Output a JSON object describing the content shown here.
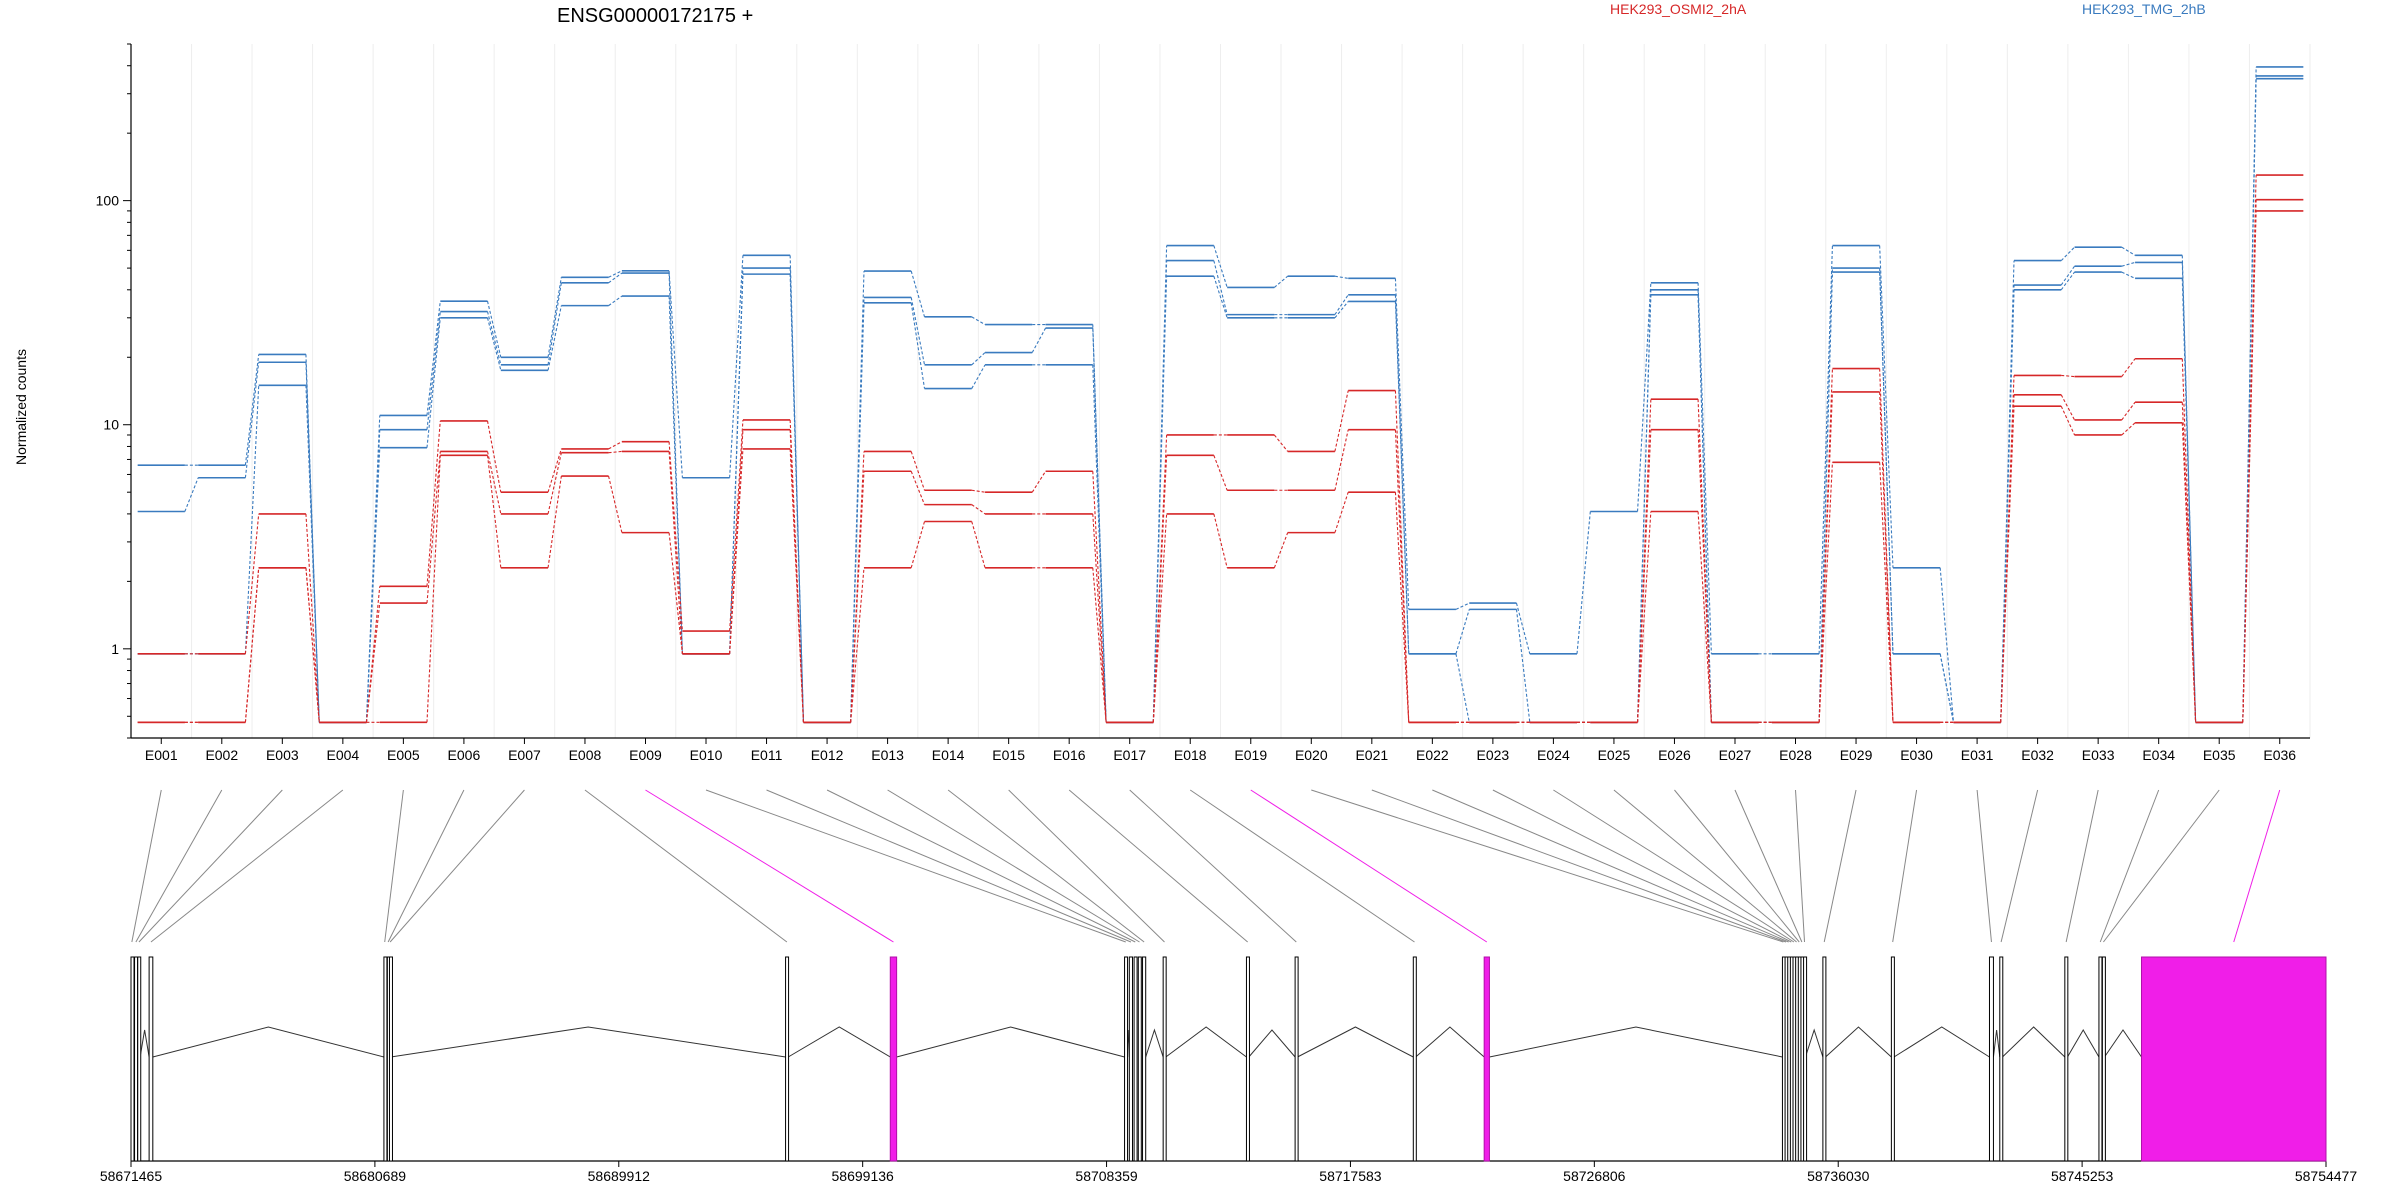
{
  "chart_data": {
    "type": "line",
    "title": "ENSG00000172175 +",
    "ylabel": "Normalized counts",
    "yscale": "log",
    "ylim": [
      0.4,
      500
    ],
    "y_tick_labels": [
      "1",
      "10",
      "100"
    ],
    "categories": [
      "E001",
      "E002",
      "E003",
      "E004",
      "E005",
      "E006",
      "E007",
      "E008",
      "E009",
      "E010",
      "E011",
      "E012",
      "E013",
      "E014",
      "E015",
      "E016",
      "E017",
      "E018",
      "E019",
      "E020",
      "E021",
      "E022",
      "E023",
      "E024",
      "E025",
      "E026",
      "E027",
      "E028",
      "E029",
      "E030",
      "E031",
      "E032",
      "E033",
      "E034",
      "E035",
      "E036"
    ],
    "legend": [
      {
        "name": "HEK293_OSMI2_2hA",
        "color": "#d62728"
      },
      {
        "name": "HEK293_TMG_2hB",
        "color": "#3a7bbf"
      }
    ],
    "series": [
      {
        "name": "HEK293_TMG_2hB",
        "color": "#3a7bbf",
        "values": [
          6.6,
          6.6,
          20.6,
          0.47,
          11.0,
          35.6,
          20.0,
          45.5,
          48.6,
          5.8,
          57.0,
          0.47,
          48.5,
          30.3,
          28.0,
          28.0,
          0.47,
          63.0,
          41.0,
          46.0,
          45.0,
          1.5,
          1.6,
          0.95,
          4.1,
          43.0,
          0.95,
          0.95,
          63.0,
          2.3,
          0.47,
          54.0,
          62.0,
          57.0,
          0.47,
          395
        ]
      },
      {
        "name": "HEK293_TMG_2hB",
        "color": "#3a7bbf",
        "values": [
          4.1,
          5.8,
          19.0,
          0.47,
          9.5,
          32.0,
          18.5,
          43.0,
          47.5,
          0.95,
          50.0,
          0.47,
          37.0,
          18.5,
          21.0,
          27.0,
          0.47,
          54.0,
          31.0,
          31.0,
          38.0,
          0.95,
          1.5,
          0.47,
          0.47,
          40.0,
          0.47,
          0.47,
          50.0,
          0.95,
          0.47,
          42.0,
          51.0,
          53.0,
          0.47,
          360
        ]
      },
      {
        "name": "HEK293_TMG_2hB",
        "color": "#3a7bbf",
        "values": [
          0.95,
          0.95,
          15.0,
          0.47,
          7.9,
          30.0,
          17.5,
          34.0,
          37.5,
          0.95,
          47.0,
          0.47,
          35.0,
          14.5,
          18.5,
          18.5,
          0.47,
          46.0,
          30.0,
          30.0,
          35.5,
          0.95,
          0.47,
          0.47,
          0.47,
          38.0,
          0.47,
          0.47,
          48.0,
          0.95,
          0.47,
          40.0,
          48.0,
          45.0,
          0.47,
          350
        ]
      },
      {
        "name": "HEK293_OSMI2_2hA",
        "color": "#d62728",
        "values": [
          0.95,
          0.95,
          4.0,
          0.47,
          1.9,
          10.4,
          5.0,
          7.8,
          8.4,
          1.2,
          10.5,
          0.47,
          7.6,
          5.1,
          5.0,
          6.2,
          0.47,
          9.0,
          9.0,
          7.6,
          14.2,
          0.47,
          0.47,
          0.47,
          0.47,
          13.0,
          0.47,
          0.47,
          17.8,
          0.47,
          0.47,
          16.6,
          16.4,
          19.7,
          0.47,
          130
        ]
      },
      {
        "name": "HEK293_OSMI2_2hA",
        "color": "#d62728",
        "values": [
          0.47,
          0.47,
          2.3,
          0.47,
          1.6,
          7.6,
          4.0,
          7.5,
          7.6,
          0.95,
          9.5,
          0.47,
          6.2,
          4.4,
          4.0,
          4.0,
          0.47,
          7.3,
          5.1,
          5.1,
          9.5,
          0.47,
          0.47,
          0.47,
          0.47,
          9.5,
          0.47,
          0.47,
          14.0,
          0.47,
          0.47,
          13.6,
          10.5,
          12.6,
          0.47,
          101
        ]
      },
      {
        "name": "HEK293_OSMI2_2hA",
        "color": "#d62728",
        "values": [
          0.47,
          0.47,
          2.3,
          0.47,
          0.47,
          7.3,
          2.3,
          5.9,
          3.3,
          0.95,
          7.8,
          0.47,
          2.3,
          3.7,
          2.3,
          2.3,
          0.47,
          4.0,
          2.3,
          3.3,
          5.0,
          0.47,
          0.47,
          0.47,
          0.47,
          4.1,
          0.47,
          0.47,
          6.8,
          0.47,
          0.47,
          12.1,
          9.0,
          10.2,
          0.47,
          90
        ]
      }
    ],
    "genomic_axis": {
      "tick_labels": [
        "58671465",
        "58680689",
        "58689912",
        "58699136",
        "58708359",
        "58717583",
        "58726806",
        "58736030",
        "58745253",
        "58754477"
      ],
      "range": [
        58671465,
        58754477
      ],
      "highlight_color": "#f01ee8",
      "exons": [
        {
          "id": "E001",
          "start": 58671465,
          "end": 58671530,
          "highlight": false
        },
        {
          "id": "E002",
          "start": 58671600,
          "end": 58671700,
          "highlight": false
        },
        {
          "id": "E003",
          "start": 58671720,
          "end": 58671810,
          "highlight": false
        },
        {
          "id": "E004",
          "start": 58672150,
          "end": 58672290,
          "highlight": false
        },
        {
          "id": "E005",
          "start": 58681030,
          "end": 58681090,
          "highlight": false
        },
        {
          "id": "E006",
          "start": 58681160,
          "end": 58681220,
          "highlight": false
        },
        {
          "id": "E007",
          "start": 58681240,
          "end": 58681290,
          "highlight": false
        },
        {
          "id": "E008",
          "start": 58696220,
          "end": 58696320,
          "highlight": false
        },
        {
          "id": "E009",
          "start": 58700180,
          "end": 58700420,
          "highlight": true
        },
        {
          "id": "E010",
          "start": 58709040,
          "end": 58709130,
          "highlight": false
        },
        {
          "id": "E011",
          "start": 58709220,
          "end": 58709340,
          "highlight": false
        },
        {
          "id": "E012",
          "start": 58709400,
          "end": 58709490,
          "highlight": false
        },
        {
          "id": "E013",
          "start": 58709560,
          "end": 58709650,
          "highlight": false
        },
        {
          "id": "E014",
          "start": 58709720,
          "end": 58709840,
          "highlight": false
        },
        {
          "id": "E015",
          "start": 58710500,
          "end": 58710600,
          "highlight": false
        },
        {
          "id": "E016",
          "start": 58713650,
          "end": 58713740,
          "highlight": false
        },
        {
          "id": "E017",
          "start": 58715490,
          "end": 58715580,
          "highlight": false
        },
        {
          "id": "E018",
          "start": 58719960,
          "end": 58720050,
          "highlight": false
        },
        {
          "id": "E019",
          "start": 58722640,
          "end": 58722840,
          "highlight": true
        },
        {
          "id": "E020",
          "start": 58733920,
          "end": 58733990,
          "highlight": false
        },
        {
          "id": "E021",
          "start": 58734020,
          "end": 58734090,
          "highlight": false
        },
        {
          "id": "E022",
          "start": 58734120,
          "end": 58734190,
          "highlight": false
        },
        {
          "id": "E023",
          "start": 58734220,
          "end": 58734290,
          "highlight": false
        },
        {
          "id": "E024",
          "start": 58734320,
          "end": 58734390,
          "highlight": false
        },
        {
          "id": "E025",
          "start": 58734420,
          "end": 58734490,
          "highlight": false
        },
        {
          "id": "E026",
          "start": 58734520,
          "end": 58734590,
          "highlight": false
        },
        {
          "id": "E027",
          "start": 58734620,
          "end": 58734690,
          "highlight": false
        },
        {
          "id": "E028",
          "start": 58734720,
          "end": 58734790,
          "highlight": false
        },
        {
          "id": "E029",
          "start": 58735450,
          "end": 58735550,
          "highlight": false
        },
        {
          "id": "E030",
          "start": 58738040,
          "end": 58738140,
          "highlight": false
        },
        {
          "id": "E031",
          "start": 58741750,
          "end": 58741900,
          "highlight": false
        },
        {
          "id": "E032",
          "start": 58742140,
          "end": 58742240,
          "highlight": false
        },
        {
          "id": "E033",
          "start": 58744600,
          "end": 58744700,
          "highlight": false
        },
        {
          "id": "E034",
          "start": 58745890,
          "end": 58745990,
          "highlight": false
        },
        {
          "id": "E035",
          "start": 58746020,
          "end": 58746100,
          "highlight": false
        },
        {
          "id": "E036",
          "start": 58747500,
          "end": 58754477,
          "highlight": true
        }
      ]
    }
  }
}
